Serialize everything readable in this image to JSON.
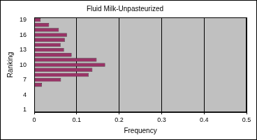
{
  "chart_data": {
    "type": "bar",
    "orientation": "horizontal",
    "title": "Fluid Milk-Unpasteurized",
    "x_label": "Frequency",
    "y_label": "Ranking",
    "categories": [
      "1",
      null,
      null,
      "4",
      null,
      null,
      "7",
      null,
      null,
      "10",
      null,
      null,
      "13",
      null,
      null,
      "16",
      null,
      null,
      "19"
    ],
    "values": [
      0,
      0,
      0,
      0,
      0,
      0.018,
      0.063,
      0.128,
      0.137,
      0.167,
      0.147,
      0.088,
      0.07,
      0.062,
      0.072,
      0.077,
      0.058,
      0.035,
      0.015
    ],
    "color": "#993366",
    "xlim": [
      0,
      0.5
    ],
    "xticks": [
      0,
      0.1,
      0.2,
      0.3,
      0.4,
      0.5
    ],
    "grid": true
  }
}
